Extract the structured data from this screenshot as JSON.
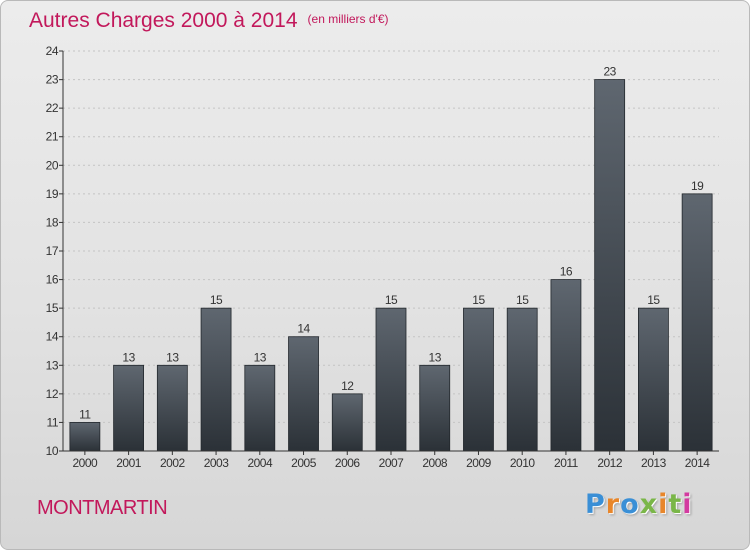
{
  "title": "Autres Charges 2000 à 2014",
  "subtitle": "(en milliers d'€)",
  "location": "MONTMARTIN",
  "logo": {
    "text": "Proxiti",
    "colors": [
      "#3a8fd6",
      "#e8862a",
      "#3a8fd6",
      "#7ab648",
      "#e8862a",
      "#7ab648",
      "#d33aa0"
    ]
  },
  "colors": {
    "title": "#c2185b",
    "bar_top": "#5f6770",
    "bar_bottom": "#2b3137",
    "axis": "#333333",
    "grid": "#c4c4c4"
  },
  "chart_data": {
    "type": "bar",
    "categories": [
      "2000",
      "2001",
      "2002",
      "2003",
      "2004",
      "2005",
      "2006",
      "2007",
      "2008",
      "2009",
      "2010",
      "2011",
      "2012",
      "2013",
      "2014"
    ],
    "values": [
      11,
      13,
      13,
      15,
      13,
      14,
      12,
      15,
      13,
      15,
      15,
      16,
      23,
      15,
      19
    ],
    "data_labels": [
      "11",
      "13",
      "13",
      "15",
      "13",
      "14",
      "12",
      "15",
      "13",
      "15",
      "15",
      "16",
      "23",
      "15",
      "19"
    ],
    "yticks": [
      10,
      11,
      12,
      13,
      14,
      15,
      16,
      17,
      18,
      19,
      20,
      21,
      22,
      23,
      24
    ],
    "ylim": [
      10,
      24
    ],
    "grid": true,
    "legend": "none"
  }
}
